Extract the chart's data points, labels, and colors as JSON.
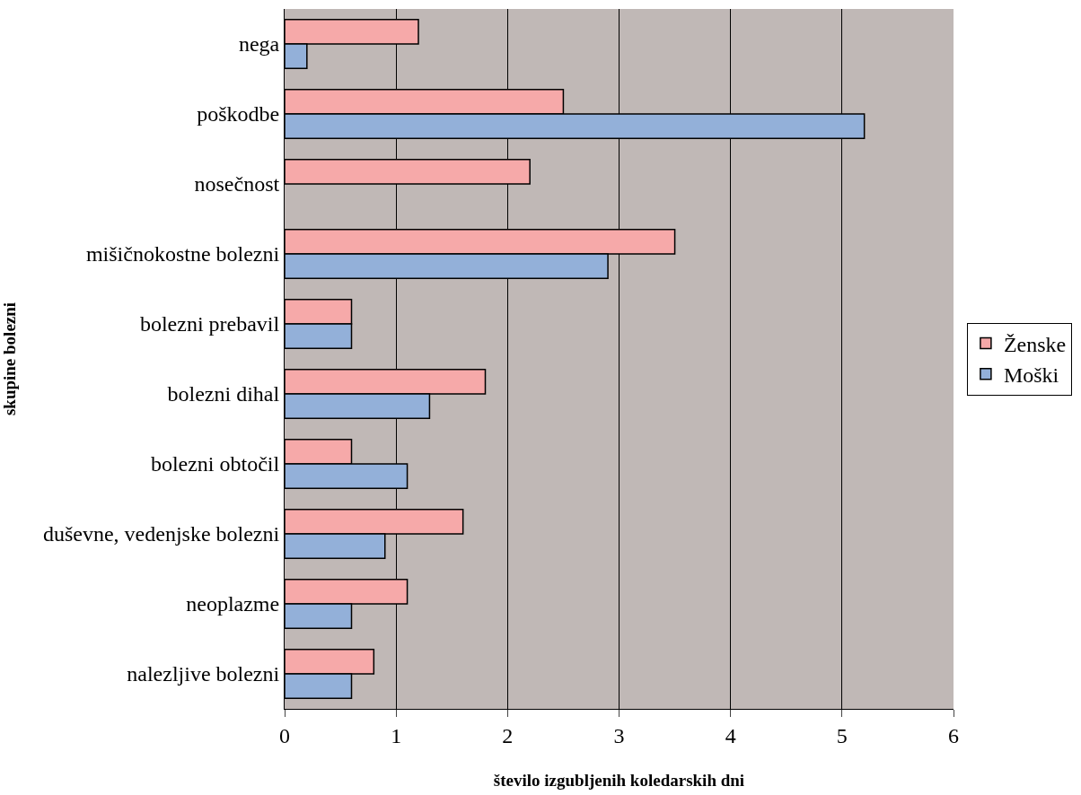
{
  "chart_data": {
    "type": "bar",
    "orientation": "horizontal",
    "xlabel": "število izgubljenih koledarskih dni",
    "ylabel": "skupine bolezni",
    "categories": [
      "nega",
      "poškodbe",
      "nosečnost",
      "mišičnokostne bolezni",
      "bolezni prebavil",
      "bolezni dihal",
      "bolezni obtočil",
      "duševne, vedenjske bolezni",
      "neoplazme",
      "nalezljive bolezni"
    ],
    "series": [
      {
        "name": "Ženske",
        "color": "#f6a9a9",
        "values": [
          1.2,
          2.5,
          2.2,
          3.5,
          0.6,
          1.8,
          0.6,
          1.6,
          1.1,
          0.8
        ]
      },
      {
        "name": "Moški",
        "color": "#93b0d9",
        "values": [
          0.2,
          5.2,
          null,
          2.9,
          0.6,
          1.3,
          1.1,
          0.9,
          0.6,
          0.6
        ]
      }
    ],
    "xlim": [
      0,
      6
    ],
    "xticks": [
      0,
      1,
      2,
      3,
      4,
      5,
      6
    ],
    "grid": "x",
    "legend": "right"
  }
}
